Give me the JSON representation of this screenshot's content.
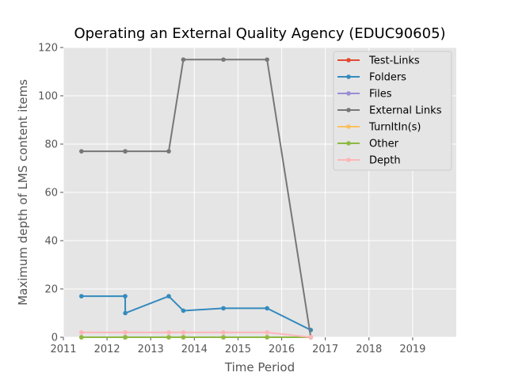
{
  "chart_data": {
    "type": "line",
    "title": "Operating an External Quality Agency (EDUC90605)",
    "xlabel": "Time Period",
    "ylabel": "Maximum depth of LMS content items",
    "xlim": [
      2011,
      2020
    ],
    "ylim": [
      0,
      120
    ],
    "x_ticks": [
      "2011",
      "2012",
      "2013",
      "2014",
      "2015",
      "2016",
      "2017",
      "2018",
      "2019"
    ],
    "y_ticks": [
      "0",
      "20",
      "40",
      "60",
      "80",
      "100",
      "120"
    ],
    "grid": true,
    "legend_position": "top-right",
    "x": [
      "2011-06-01",
      "2012-06-01",
      "2012-06-02",
      "2013-06-01",
      "2013-10-01",
      "2014-09-01",
      "2015-09-01",
      "2016-09-01"
    ],
    "series": [
      {
        "name": "Test-Links",
        "color": "#E24A33",
        "values": [
          0,
          0,
          0,
          0,
          0,
          0,
          0,
          0
        ]
      },
      {
        "name": "Folders",
        "color": "#348ABD",
        "values": [
          17,
          17,
          10,
          17,
          11,
          12,
          12,
          3
        ]
      },
      {
        "name": "Files",
        "color": "#988ED5",
        "values": [
          0,
          0,
          0,
          0,
          0,
          0,
          0,
          0
        ]
      },
      {
        "name": "External Links",
        "color": "#777777",
        "values": [
          77,
          77,
          77,
          77,
          115,
          115,
          115,
          0
        ]
      },
      {
        "name": "TurnItIn(s)",
        "color": "#FBC15E",
        "values": [
          0,
          0,
          0,
          0,
          0,
          0,
          0,
          0
        ]
      },
      {
        "name": "Other",
        "color": "#8EBA42",
        "values": [
          0,
          0,
          0,
          0,
          0,
          0,
          0,
          0
        ]
      },
      {
        "name": "Depth",
        "color": "#FFB5B8",
        "values": [
          2,
          2,
          2,
          2,
          2,
          2,
          2,
          0
        ]
      }
    ]
  }
}
